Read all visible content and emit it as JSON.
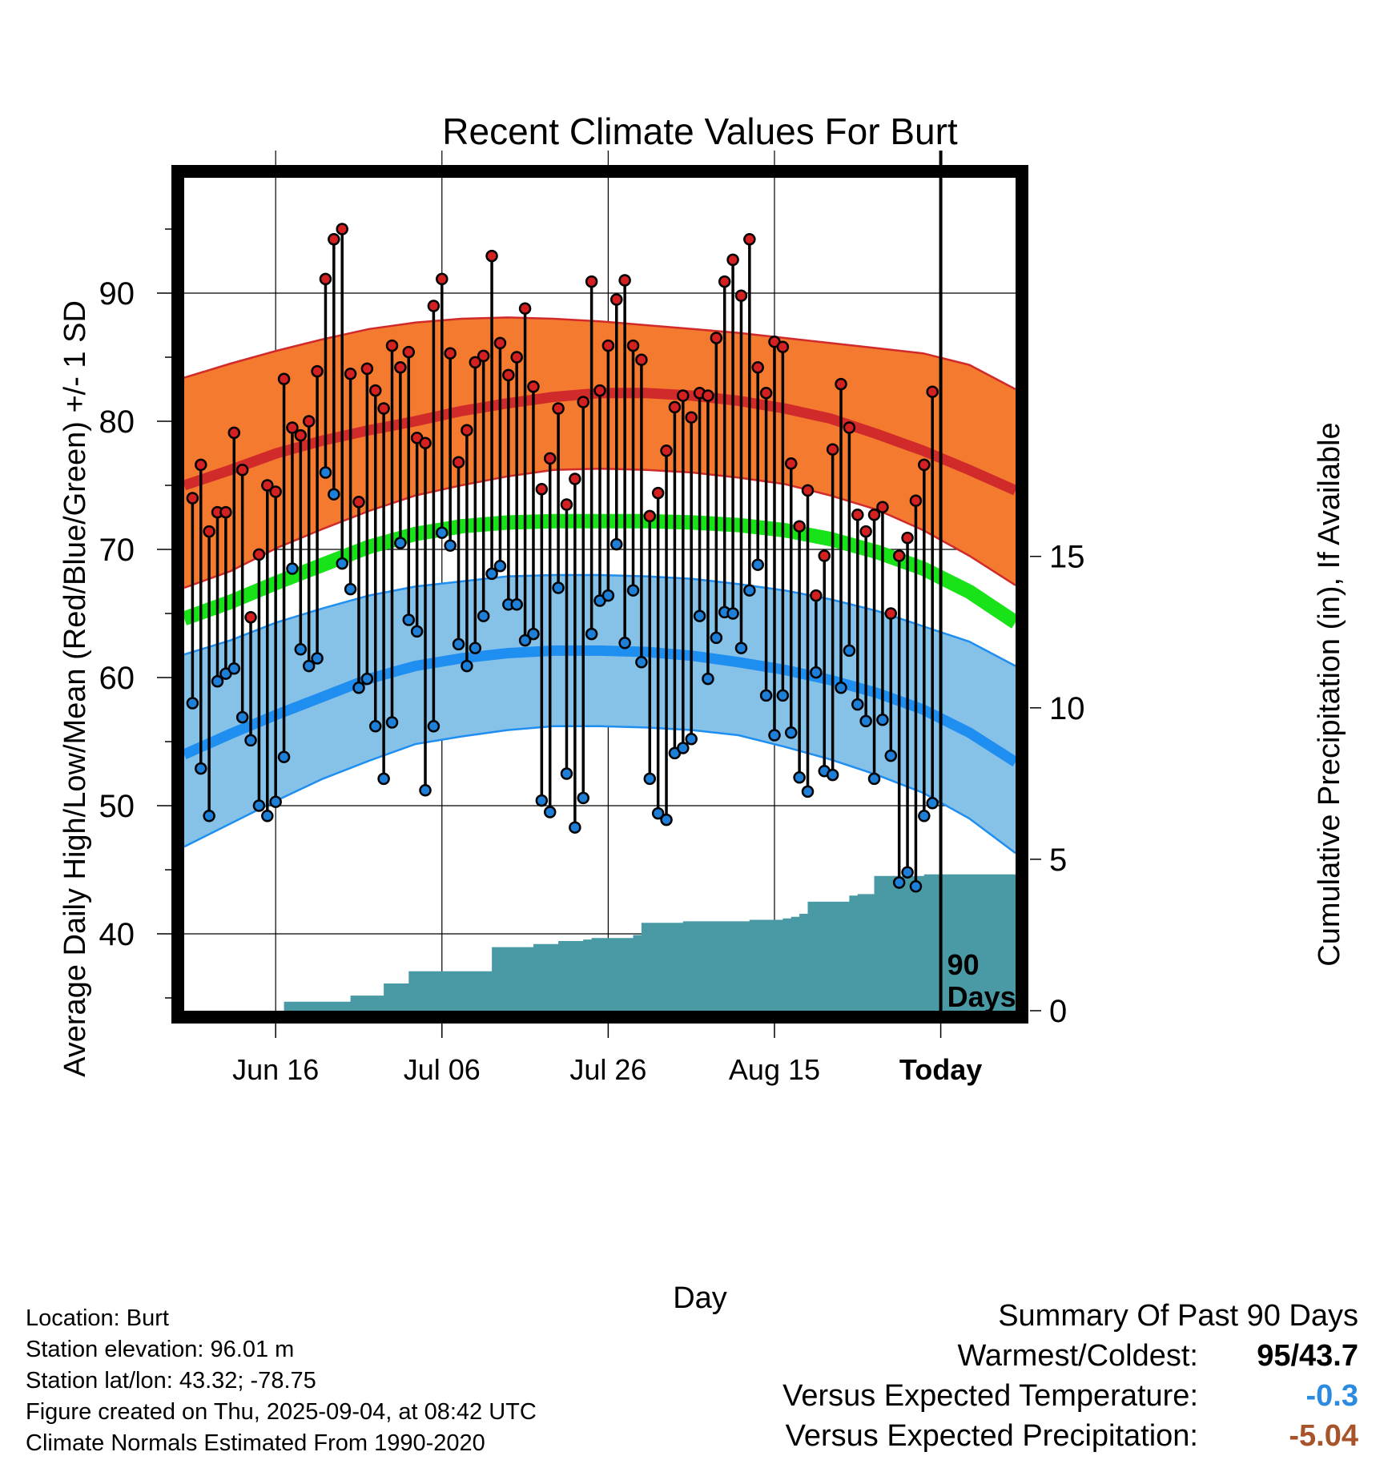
{
  "colors": {
    "high_band": "#f47a30",
    "high_mean": "#d12a2a",
    "mean_line": "#18e218",
    "low_band": "#86c1e8",
    "low_mean": "#1e8ef0",
    "precip": "#4a9aa5",
    "high_marker": "#d42020",
    "low_marker": "#1e7fd8",
    "temp_anomaly": "#2a8be0",
    "precip_anomaly": "#a8532a"
  },
  "chart_data": {
    "type": "line",
    "title": "Recent Climate Values For Burt",
    "xlabel": "Day",
    "ylabel": "Average Daily High/Low/Mean (Red/Blue/Green) +/- 1 SD",
    "y2label": "Cumulative Precipitation (in), If Available",
    "x_tick_labels": [
      "Jun 16",
      "Jul 06",
      "Jul 26",
      "Aug 15",
      "Today"
    ],
    "x_tick_days": [
      11,
      31,
      51,
      71,
      91
    ],
    "xlim": [
      0,
      100
    ],
    "ylim": [
      34,
      99
    ],
    "y_ticks": [
      40,
      50,
      60,
      70,
      80,
      90
    ],
    "y2lim": [
      0,
      27.5
    ],
    "y2_ticks": [
      0,
      5,
      10,
      15
    ],
    "today_label": "90\nDays",
    "normal_high_mean": [
      75.0,
      76.2,
      77.5,
      78.5,
      79.3,
      80.0,
      80.8,
      81.4,
      81.9,
      82.2,
      82.2,
      82.0,
      81.6,
      81.0,
      80.2,
      79.0,
      77.7,
      76.2,
      74.6
    ],
    "normal_high_upper": [
      83.4,
      84.5,
      85.5,
      86.4,
      87.2,
      87.7,
      88.0,
      88.1,
      88.0,
      87.8,
      87.5,
      87.2,
      86.9,
      86.5,
      86.1,
      85.7,
      85.3,
      84.4,
      82.5
    ],
    "normal_high_lower": [
      67.0,
      68.3,
      70.1,
      71.6,
      73.0,
      74.2,
      75.0,
      75.7,
      76.2,
      76.3,
      76.2,
      76.0,
      75.6,
      75.1,
      74.2,
      73.1,
      71.5,
      69.5,
      67.2
    ],
    "normal_mean": [
      64.6,
      65.9,
      67.4,
      68.8,
      70.2,
      71.2,
      71.8,
      72.1,
      72.2,
      72.2,
      72.2,
      72.1,
      71.9,
      71.5,
      70.8,
      69.8,
      68.5,
      66.7,
      64.3
    ],
    "normal_low_mean": [
      54.0,
      55.6,
      57.1,
      58.5,
      59.9,
      60.9,
      61.5,
      61.9,
      62.1,
      62.1,
      62.0,
      61.7,
      61.2,
      60.6,
      59.8,
      58.8,
      57.5,
      55.7,
      53.4
    ],
    "normal_low_upper": [
      61.8,
      62.9,
      64.3,
      65.4,
      66.4,
      67.1,
      67.5,
      67.9,
      68.0,
      68.0,
      67.9,
      67.7,
      67.3,
      66.8,
      66.1,
      65.2,
      64.0,
      62.8,
      60.9
    ],
    "normal_low_lower": [
      46.8,
      48.6,
      50.4,
      52.1,
      53.5,
      54.8,
      55.4,
      55.9,
      56.2,
      56.2,
      56.1,
      55.9,
      55.5,
      54.6,
      53.6,
      52.4,
      51.0,
      49.0,
      46.3
    ],
    "daily_high": [
      74.0,
      76.6,
      71.4,
      72.9,
      72.9,
      79.1,
      76.2,
      64.7,
      69.6,
      75.0,
      74.5,
      83.3,
      79.5,
      78.9,
      80.0,
      83.9,
      91.1,
      94.2,
      95.0,
      83.7,
      73.7,
      84.1,
      82.4,
      81.0,
      85.9,
      84.2,
      85.4,
      78.7,
      78.3,
      89.0,
      91.1,
      85.3,
      76.8,
      79.3,
      84.6,
      85.1,
      92.9,
      86.1,
      83.6,
      85.0,
      88.8,
      82.7,
      74.7,
      77.1,
      81.0,
      73.5,
      75.5,
      81.5,
      90.9,
      82.4,
      85.9,
      89.5,
      91.0,
      85.9,
      84.8,
      72.6,
      74.4,
      77.7,
      81.1,
      82.0,
      80.3,
      82.2,
      82.0,
      86.5,
      90.9,
      92.6,
      89.8,
      94.2,
      84.2,
      82.2,
      86.2,
      85.8,
      76.7,
      71.8,
      74.6,
      66.4,
      69.5,
      77.8,
      82.9,
      79.5,
      72.7,
      71.4,
      72.7,
      73.3,
      65.0,
      69.5,
      70.9,
      73.8,
      76.6,
      82.3
    ],
    "daily_low": [
      58.0,
      52.9,
      49.2,
      59.7,
      60.3,
      60.7,
      56.9,
      55.1,
      50.0,
      49.2,
      50.3,
      53.8,
      68.5,
      62.2,
      60.9,
      61.5,
      76.0,
      74.3,
      68.9,
      66.9,
      59.2,
      59.9,
      56.2,
      52.1,
      56.5,
      70.5,
      64.5,
      63.6,
      51.2,
      56.2,
      71.3,
      70.3,
      62.6,
      60.9,
      62.3,
      64.8,
      68.1,
      68.7,
      65.7,
      65.7,
      62.9,
      63.4,
      50.4,
      49.5,
      67.0,
      52.5,
      48.3,
      50.6,
      63.4,
      66.0,
      66.4,
      70.4,
      62.7,
      66.8,
      61.2,
      52.1,
      49.4,
      48.9,
      54.1,
      54.5,
      55.2,
      64.8,
      59.9,
      63.1,
      65.1,
      65.0,
      62.3,
      66.8,
      68.8,
      58.6,
      55.5,
      58.6,
      55.7,
      52.2,
      51.1,
      60.4,
      52.7,
      52.4,
      59.2,
      62.1,
      57.9,
      56.6,
      52.1,
      56.7,
      53.9,
      44.0,
      44.8,
      43.7,
      49.2,
      50.2
    ],
    "cumulative_precip": [
      0,
      0,
      0,
      0,
      0,
      0,
      0,
      0,
      0,
      0,
      0,
      0,
      0.3,
      0.3,
      0.3,
      0.3,
      0.3,
      0.3,
      0.3,
      0.3,
      0.5,
      0.5,
      0.5,
      0.5,
      0.9,
      0.9,
      0.9,
      1.3,
      1.3,
      1.3,
      1.3,
      1.3,
      1.3,
      1.3,
      1.3,
      1.3,
      1.3,
      2.1,
      2.1,
      2.1,
      2.1,
      2.1,
      2.2,
      2.2,
      2.2,
      2.3,
      2.3,
      2.3,
      2.35,
      2.4,
      2.4,
      2.4,
      2.4,
      2.4,
      2.5,
      2.9,
      2.9,
      2.9,
      2.9,
      2.9,
      2.95,
      2.95,
      2.95,
      2.95,
      2.95,
      2.95,
      2.95,
      2.95,
      3.0,
      3.0,
      3.0,
      3.0,
      3.05,
      3.1,
      3.2,
      3.6,
      3.6,
      3.6,
      3.6,
      3.6,
      3.8,
      3.85,
      3.85,
      4.45,
      4.45,
      4.45,
      4.45,
      4.45,
      4.45,
      4.5,
      4.5,
      4.5,
      4.5,
      4.5,
      4.5,
      4.5,
      4.5,
      4.5,
      4.5,
      4.5,
      4.5
    ]
  },
  "info": {
    "location": "Location: Burt",
    "elevation": "Station elevation: 96.01 m",
    "latlon": "Station lat/lon: 43.32; -78.75",
    "created": "Figure created on Thu, 2025-09-04, at 08:42 UTC",
    "normals": "Climate Normals Estimated From 1990-2020"
  },
  "summary": {
    "title": "Summary Of Past 90 Days",
    "warmest_label": "Warmest/Coldest:",
    "warmest_value": "95",
    "coldest_value": "/43.7",
    "temp_label": "Versus Expected Temperature:",
    "temp_value": "-0.3",
    "precip_label": "Versus Expected Precipitation:",
    "precip_value": "-5.04"
  }
}
